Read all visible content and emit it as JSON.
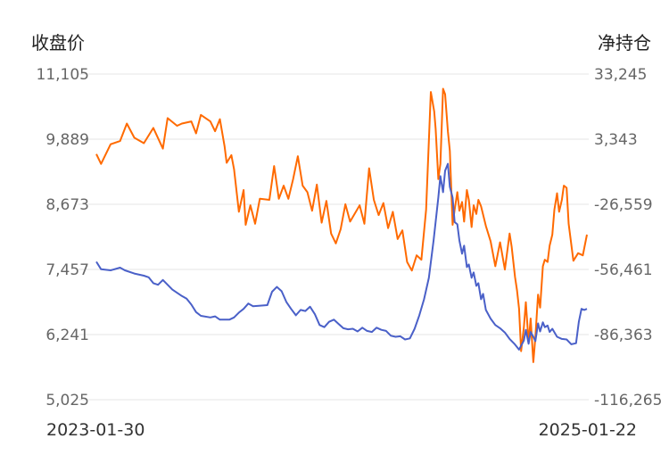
{
  "chart_data": {
    "type": "line",
    "title": "",
    "y_left_label": "收盘价",
    "y_right_label": "净持仓",
    "y_left_ticks": [
      "11,105",
      "9,889",
      "8,673",
      "7,457",
      "6,241",
      "5,025"
    ],
    "y_right_ticks": [
      "33,245",
      "3,343",
      "-26,559",
      "-56,461",
      "-86,363",
      "-116,265"
    ],
    "y_left_lim": [
      5025,
      11105
    ],
    "y_right_lim": [
      -116265,
      33245
    ],
    "x_start_label": "2023-01-30",
    "x_end_label": "2025-01-22",
    "x_range": [
      "2023-01-30",
      "2025-01-22"
    ],
    "grid": true,
    "legend": "none",
    "series": [
      {
        "axis": "right",
        "color": "#ff6a00",
        "points": [
          [
            "2023-01-30",
            -3500
          ],
          [
            "2023-02-06",
            -8000
          ],
          [
            "2023-02-20",
            1000
          ],
          [
            "2023-03-06",
            2500
          ],
          [
            "2023-03-16",
            10500
          ],
          [
            "2023-03-27",
            4000
          ],
          [
            "2023-04-10",
            1500
          ],
          [
            "2023-04-24",
            8500
          ],
          [
            "2023-05-08",
            -1000
          ],
          [
            "2023-05-15",
            13000
          ],
          [
            "2023-05-29",
            9500
          ],
          [
            "2023-06-05",
            10500
          ],
          [
            "2023-06-19",
            11500
          ],
          [
            "2023-06-26",
            6000
          ],
          [
            "2023-07-03",
            14500
          ],
          [
            "2023-07-17",
            11500
          ],
          [
            "2023-07-24",
            7000
          ],
          [
            "2023-07-31",
            12500
          ],
          [
            "2023-08-07",
            0
          ],
          [
            "2023-08-10",
            -7500
          ],
          [
            "2023-08-17",
            -4000
          ],
          [
            "2023-08-21",
            -10500
          ],
          [
            "2023-08-28",
            -30000
          ],
          [
            "2023-09-04",
            -20000
          ],
          [
            "2023-09-07",
            -36000
          ],
          [
            "2023-09-14",
            -27000
          ],
          [
            "2023-09-21",
            -35500
          ],
          [
            "2023-09-28",
            -24000
          ],
          [
            "2023-10-12",
            -24500
          ],
          [
            "2023-10-19",
            -9000
          ],
          [
            "2023-10-26",
            -24000
          ],
          [
            "2023-11-02",
            -18000
          ],
          [
            "2023-11-09",
            -24000
          ],
          [
            "2023-11-16",
            -15000
          ],
          [
            "2023-11-23",
            -4500
          ],
          [
            "2023-11-30",
            -18000
          ],
          [
            "2023-12-07",
            -21000
          ],
          [
            "2023-12-14",
            -29500
          ],
          [
            "2023-12-21",
            -17500
          ],
          [
            "2023-12-28",
            -35000
          ],
          [
            "2024-01-04",
            -25000
          ],
          [
            "2024-01-11",
            -40000
          ],
          [
            "2024-01-18",
            -44500
          ],
          [
            "2024-01-25",
            -38000
          ],
          [
            "2024-02-01",
            -26500
          ],
          [
            "2024-02-08",
            -34500
          ],
          [
            "2024-02-22",
            -27000
          ],
          [
            "2024-02-29",
            -35500
          ],
          [
            "2024-03-07",
            -10000
          ],
          [
            "2024-03-14",
            -24500
          ],
          [
            "2024-03-21",
            -31500
          ],
          [
            "2024-03-28",
            -26000
          ],
          [
            "2024-04-04",
            -37500
          ],
          [
            "2024-04-11",
            -30000
          ],
          [
            "2024-04-18",
            -42500
          ],
          [
            "2024-04-25",
            -38500
          ],
          [
            "2024-05-02",
            -53000
          ],
          [
            "2024-05-09",
            -57000
          ],
          [
            "2024-05-16",
            -50000
          ],
          [
            "2024-05-23",
            -52000
          ],
          [
            "2024-05-30",
            -29000
          ],
          [
            "2024-06-06",
            25000
          ],
          [
            "2024-06-11",
            16000
          ],
          [
            "2024-06-13",
            8000
          ],
          [
            "2024-06-17",
            -15000
          ],
          [
            "2024-06-20",
            -8000
          ],
          [
            "2024-06-24",
            26500
          ],
          [
            "2024-06-27",
            24000
          ],
          [
            "2024-07-01",
            7000
          ],
          [
            "2024-07-04",
            -2000
          ],
          [
            "2024-07-08",
            -36000
          ],
          [
            "2024-07-11",
            -29000
          ],
          [
            "2024-07-15",
            -21000
          ],
          [
            "2024-07-18",
            -29500
          ],
          [
            "2024-07-22",
            -25500
          ],
          [
            "2024-07-25",
            -34500
          ],
          [
            "2024-07-29",
            -20000
          ],
          [
            "2024-08-01",
            -24500
          ],
          [
            "2024-08-05",
            -37000
          ],
          [
            "2024-08-08",
            -27000
          ],
          [
            "2024-08-12",
            -31000
          ],
          [
            "2024-08-15",
            -24500
          ],
          [
            "2024-08-19",
            -27500
          ],
          [
            "2024-08-26",
            -36500
          ],
          [
            "2024-09-02",
            -43500
          ],
          [
            "2024-09-09",
            -55000
          ],
          [
            "2024-09-16",
            -44000
          ],
          [
            "2024-09-23",
            -56500
          ],
          [
            "2024-09-30",
            -40000
          ],
          [
            "2024-10-03",
            -46000
          ],
          [
            "2024-10-08",
            -60000
          ],
          [
            "2024-10-11",
            -66000
          ],
          [
            "2024-10-14",
            -74500
          ],
          [
            "2024-10-17",
            -94000
          ],
          [
            "2024-10-21",
            -83000
          ],
          [
            "2024-10-24",
            -71500
          ],
          [
            "2024-10-28",
            -90000
          ],
          [
            "2024-10-31",
            -79000
          ],
          [
            "2024-11-04",
            -99000
          ],
          [
            "2024-11-07",
            -87500
          ],
          [
            "2024-11-11",
            -68000
          ],
          [
            "2024-11-14",
            -74000
          ],
          [
            "2024-11-18",
            -55000
          ],
          [
            "2024-11-21",
            -52000
          ],
          [
            "2024-11-25",
            -53000
          ],
          [
            "2024-11-28",
            -45500
          ],
          [
            "2024-12-02",
            -40500
          ],
          [
            "2024-12-05",
            -29000
          ],
          [
            "2024-12-09",
            -21500
          ],
          [
            "2024-12-12",
            -30000
          ],
          [
            "2024-12-16",
            -24500
          ],
          [
            "2024-12-19",
            -18000
          ],
          [
            "2024-12-23",
            -19000
          ],
          [
            "2024-12-26",
            -35500
          ],
          [
            "2025-01-02",
            -52500
          ],
          [
            "2025-01-09",
            -49000
          ],
          [
            "2025-01-16",
            -50000
          ],
          [
            "2025-01-22",
            -40500
          ]
        ]
      },
      {
        "axis": "left",
        "color": "#4a60c8",
        "points": [
          [
            "2023-01-30",
            7600
          ],
          [
            "2023-02-06",
            7460
          ],
          [
            "2023-02-20",
            7440
          ],
          [
            "2023-03-06",
            7490
          ],
          [
            "2023-03-13",
            7440
          ],
          [
            "2023-03-27",
            7380
          ],
          [
            "2023-04-10",
            7340
          ],
          [
            "2023-04-17",
            7310
          ],
          [
            "2023-04-24",
            7200
          ],
          [
            "2023-05-01",
            7170
          ],
          [
            "2023-05-08",
            7260
          ],
          [
            "2023-05-22",
            7080
          ],
          [
            "2023-06-05",
            6960
          ],
          [
            "2023-06-12",
            6910
          ],
          [
            "2023-06-19",
            6800
          ],
          [
            "2023-06-26",
            6660
          ],
          [
            "2023-07-03",
            6590
          ],
          [
            "2023-07-17",
            6560
          ],
          [
            "2023-07-24",
            6580
          ],
          [
            "2023-07-31",
            6520
          ],
          [
            "2023-08-14",
            6520
          ],
          [
            "2023-08-21",
            6560
          ],
          [
            "2023-08-28",
            6650
          ],
          [
            "2023-09-04",
            6720
          ],
          [
            "2023-09-11",
            6820
          ],
          [
            "2023-09-18",
            6770
          ],
          [
            "2023-10-09",
            6790
          ],
          [
            "2023-10-16",
            7040
          ],
          [
            "2023-10-23",
            7130
          ],
          [
            "2023-10-30",
            7050
          ],
          [
            "2023-11-06",
            6850
          ],
          [
            "2023-11-13",
            6720
          ],
          [
            "2023-11-20",
            6600
          ],
          [
            "2023-11-27",
            6700
          ],
          [
            "2023-12-04",
            6680
          ],
          [
            "2023-12-11",
            6760
          ],
          [
            "2023-12-18",
            6620
          ],
          [
            "2023-12-25",
            6420
          ],
          [
            "2024-01-01",
            6380
          ],
          [
            "2024-01-08",
            6480
          ],
          [
            "2024-01-15",
            6520
          ],
          [
            "2024-01-22",
            6440
          ],
          [
            "2024-01-29",
            6360
          ],
          [
            "2024-02-05",
            6340
          ],
          [
            "2024-02-12",
            6350
          ],
          [
            "2024-02-19",
            6300
          ],
          [
            "2024-02-26",
            6370
          ],
          [
            "2024-03-04",
            6310
          ],
          [
            "2024-03-11",
            6290
          ],
          [
            "2024-03-18",
            6370
          ],
          [
            "2024-03-25",
            6330
          ],
          [
            "2024-04-01",
            6310
          ],
          [
            "2024-04-08",
            6220
          ],
          [
            "2024-04-15",
            6200
          ],
          [
            "2024-04-22",
            6210
          ],
          [
            "2024-04-29",
            6150
          ],
          [
            "2024-05-06",
            6170
          ],
          [
            "2024-05-13",
            6350
          ],
          [
            "2024-05-20",
            6600
          ],
          [
            "2024-05-27",
            6900
          ],
          [
            "2024-06-03",
            7300
          ],
          [
            "2024-06-10",
            8000
          ],
          [
            "2024-06-17",
            8800
          ],
          [
            "2024-06-20",
            9200
          ],
          [
            "2024-06-24",
            8900
          ],
          [
            "2024-06-27",
            9300
          ],
          [
            "2024-07-01",
            9430
          ],
          [
            "2024-07-04",
            9000
          ],
          [
            "2024-07-08",
            8800
          ],
          [
            "2024-07-11",
            8340
          ],
          [
            "2024-07-15",
            8300
          ],
          [
            "2024-07-18",
            8000
          ],
          [
            "2024-07-22",
            7750
          ],
          [
            "2024-07-25",
            7900
          ],
          [
            "2024-07-29",
            7500
          ],
          [
            "2024-08-01",
            7550
          ],
          [
            "2024-08-05",
            7300
          ],
          [
            "2024-08-08",
            7400
          ],
          [
            "2024-08-12",
            7150
          ],
          [
            "2024-08-15",
            7200
          ],
          [
            "2024-08-19",
            6900
          ],
          [
            "2024-08-22",
            7000
          ],
          [
            "2024-08-26",
            6700
          ],
          [
            "2024-09-02",
            6540
          ],
          [
            "2024-09-09",
            6420
          ],
          [
            "2024-09-16",
            6360
          ],
          [
            "2024-09-23",
            6280
          ],
          [
            "2024-09-30",
            6160
          ],
          [
            "2024-10-07",
            6070
          ],
          [
            "2024-10-14",
            5960
          ],
          [
            "2024-10-21",
            6130
          ],
          [
            "2024-10-24",
            6330
          ],
          [
            "2024-10-28",
            6070
          ],
          [
            "2024-10-31",
            6290
          ],
          [
            "2024-11-04",
            6200
          ],
          [
            "2024-11-07",
            6120
          ],
          [
            "2024-11-11",
            6450
          ],
          [
            "2024-11-14",
            6300
          ],
          [
            "2024-11-18",
            6470
          ],
          [
            "2024-11-21",
            6380
          ],
          [
            "2024-11-25",
            6410
          ],
          [
            "2024-11-28",
            6290
          ],
          [
            "2024-12-02",
            6350
          ],
          [
            "2024-12-09",
            6200
          ],
          [
            "2024-12-16",
            6160
          ],
          [
            "2024-12-23",
            6150
          ],
          [
            "2024-12-30",
            6060
          ],
          [
            "2025-01-06",
            6080
          ],
          [
            "2025-01-10",
            6480
          ],
          [
            "2025-01-14",
            6720
          ],
          [
            "2025-01-18",
            6700
          ],
          [
            "2025-01-22",
            6720
          ]
        ]
      }
    ]
  }
}
